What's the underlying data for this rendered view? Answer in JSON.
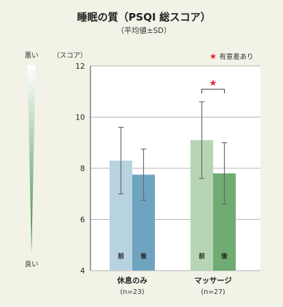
{
  "chart_data": {
    "type": "bar",
    "title": "睡眠の質（PSQI 総スコア）",
    "subtitle": "（平均値±SD）",
    "ylabel": "（スコア）",
    "scale_top": "悪い",
    "scale_bottom": "良い",
    "legend": "有意差あり",
    "legend_mark": "★",
    "significance_mark": "★",
    "ylim": [
      4,
      12
    ],
    "yticks": [
      4,
      6,
      8,
      10,
      12
    ],
    "grid": true,
    "categories": [
      {
        "label": "休息のみ",
        "n_label": "(n=23)"
      },
      {
        "label": "マッサージ",
        "n_label": "(n=27)"
      }
    ],
    "series": [
      {
        "name": "前",
        "values": [
          8.3,
          9.1
        ],
        "sd": [
          1.3,
          1.5
        ]
      },
      {
        "name": "後",
        "values": [
          7.75,
          7.8
        ],
        "sd": [
          1.0,
          1.2
        ]
      }
    ],
    "colors": {
      "前": [
        "#b8d3e0",
        "#b6d5b4"
      ],
      "後": [
        "#6fa4c0",
        "#6fab72"
      ],
      "error_bar": "#666666",
      "star": "#e0282e",
      "gradient_top": "#ffffff",
      "gradient_bottom": "#3d8a45"
    }
  }
}
